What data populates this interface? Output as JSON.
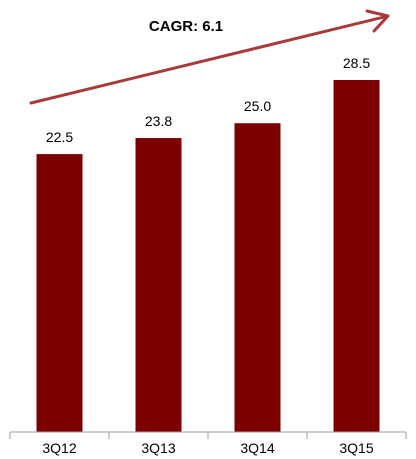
{
  "chart_data": {
    "type": "bar",
    "categories": [
      "3Q12",
      "3Q13",
      "3Q14",
      "3Q15"
    ],
    "values": [
      22.5,
      23.8,
      25.0,
      28.5
    ],
    "data_labels": [
      "22.5",
      "23.8",
      "25.0",
      "28.5"
    ],
    "ylim": [
      0,
      28.5
    ],
    "grid": false,
    "legend": "none",
    "annotation": {
      "text": "CAGR: 6.1",
      "type": "upward-arrow"
    },
    "colors": {
      "bar": "#7d0000",
      "arrow": "#a93a3a",
      "axis": "#9b9b9b",
      "text": "#000000"
    }
  }
}
